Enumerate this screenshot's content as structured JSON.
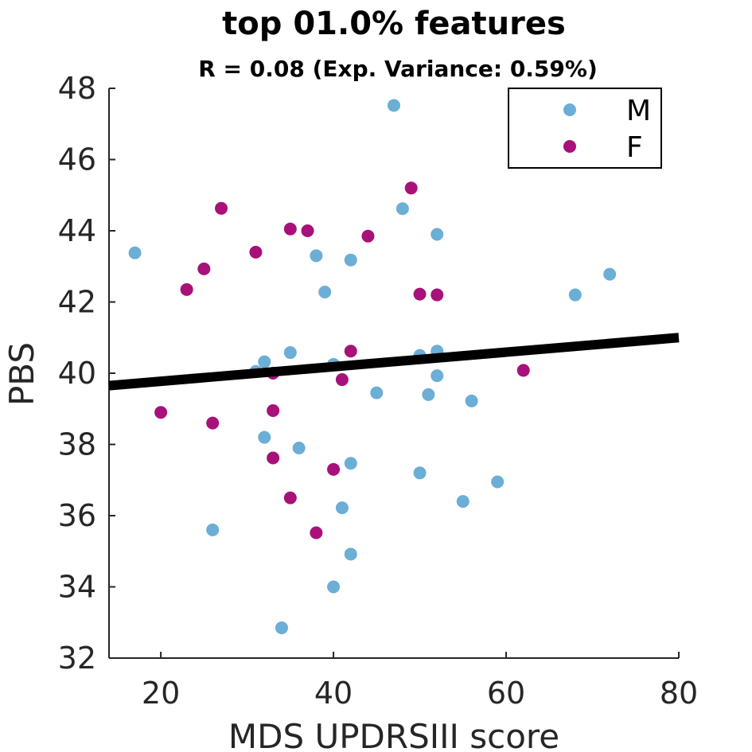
{
  "chart_data": {
    "type": "scatter",
    "title": "top 01.0% features",
    "subtitle": "R = 0.08 (Exp. Variance: 0.59%)",
    "xlabel": "MDS UPDRSIII score",
    "ylabel": "PBS",
    "xlim": [
      14,
      80
    ],
    "ylim": [
      32,
      48
    ],
    "xticks": [
      "20",
      "40",
      "60",
      "80"
    ],
    "yticks": [
      "32",
      "34",
      "36",
      "38",
      "40",
      "42",
      "44",
      "46",
      "48"
    ],
    "legend_position": "top-right",
    "grid": false,
    "series": [
      {
        "name": "M",
        "color": "#6baed6",
        "points": [
          [
            17,
            43.38
          ],
          [
            26,
            35.6
          ],
          [
            31,
            40.05
          ],
          [
            32,
            40.32
          ],
          [
            32,
            38.2
          ],
          [
            34,
            32.85
          ],
          [
            35,
            40.58
          ],
          [
            36,
            37.9
          ],
          [
            38,
            43.3
          ],
          [
            39,
            42.28
          ],
          [
            40,
            40.25
          ],
          [
            40,
            34.0
          ],
          [
            41,
            36.22
          ],
          [
            42,
            43.18
          ],
          [
            42,
            37.47
          ],
          [
            42,
            34.92
          ],
          [
            45,
            39.45
          ],
          [
            47,
            47.52
          ],
          [
            48,
            44.62
          ],
          [
            50,
            40.5
          ],
          [
            50,
            37.2
          ],
          [
            51,
            39.4
          ],
          [
            52,
            43.9
          ],
          [
            52,
            40.62
          ],
          [
            52,
            39.93
          ],
          [
            55,
            36.4
          ],
          [
            56,
            39.22
          ],
          [
            59,
            36.95
          ],
          [
            68,
            42.2
          ],
          [
            72,
            42.78
          ]
        ]
      },
      {
        "name": "F",
        "color": "#a8107a",
        "points": [
          [
            20,
            38.9
          ],
          [
            23,
            42.35
          ],
          [
            25,
            42.93
          ],
          [
            26,
            38.6
          ],
          [
            27,
            44.63
          ],
          [
            31,
            43.4
          ],
          [
            33,
            40.0
          ],
          [
            33,
            38.95
          ],
          [
            33,
            37.62
          ],
          [
            35,
            44.05
          ],
          [
            35,
            36.5
          ],
          [
            37,
            44.0
          ],
          [
            38,
            35.52
          ],
          [
            40,
            37.3
          ],
          [
            41,
            39.82
          ],
          [
            42,
            40.62
          ],
          [
            44,
            43.85
          ],
          [
            49,
            45.2
          ],
          [
            50,
            42.22
          ],
          [
            52,
            42.2
          ],
          [
            62,
            40.08
          ]
        ]
      }
    ],
    "fit_line": {
      "color": "#000000",
      "x": [
        14,
        80
      ],
      "y": [
        39.65,
        41.0
      ]
    }
  }
}
